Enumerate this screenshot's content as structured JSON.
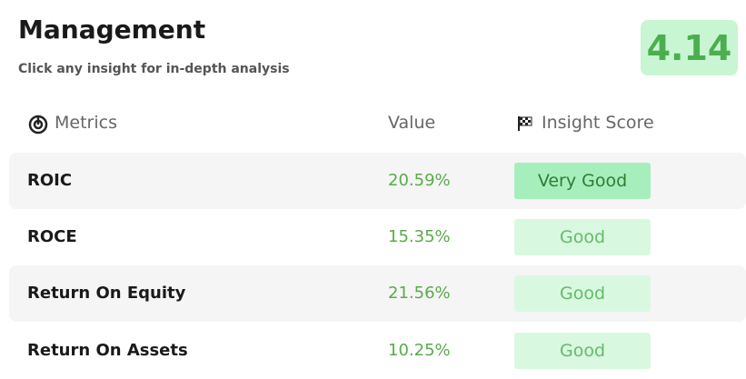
{
  "header": {
    "title": "Management",
    "subtitle": "Click any insight for in-depth analysis",
    "score": "4.14"
  },
  "table": {
    "columns": [
      "Metrics",
      "Value",
      "Insight Score"
    ],
    "rows": [
      [
        "ROIC",
        "20.59%",
        "Very Good"
      ],
      [
        "ROCE",
        "15.35%",
        "Good"
      ],
      [
        "Return On Equity",
        "21.56%",
        "Good"
      ],
      [
        "Return On Assets",
        "10.25%",
        "Good"
      ]
    ]
  }
}
